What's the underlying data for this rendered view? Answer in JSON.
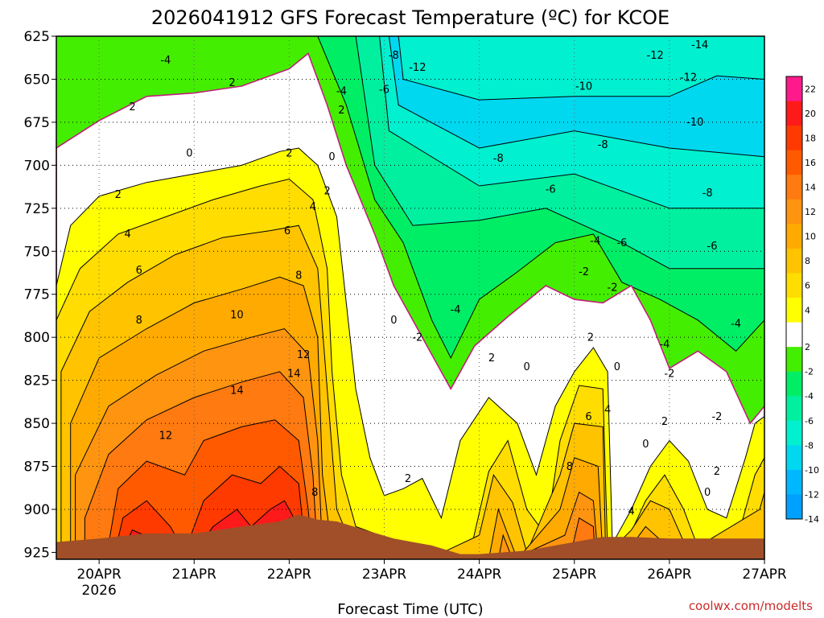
{
  "chart_data": {
    "type": "heatmap",
    "title": "2026041912 GFS Forecast Temperature (ºC) for KCOE",
    "xlabel": "Forecast Time (UTC)",
    "ylabel": "",
    "y_ticks": [
      625,
      650,
      675,
      700,
      725,
      750,
      775,
      800,
      825,
      850,
      875,
      900,
      925
    ],
    "ylim": [
      625,
      929
    ],
    "x_ticks": [
      "20APR",
      "21APR",
      "22APR",
      "23APR",
      "24APR",
      "25APR",
      "26APR",
      "27APR"
    ],
    "x_year_label": "2026",
    "xlim_days": [
      19.55,
      27.0
    ],
    "colorbar_labels": [
      22,
      20,
      18,
      16,
      14,
      12,
      10,
      8,
      6,
      4,
      2,
      -2,
      -4,
      -6,
      -8,
      -10,
      -12,
      -14
    ],
    "colorbar_colors": [
      "#ff1a8c",
      "#ff1a1a",
      "#ff3a00",
      "#ff5a00",
      "#ff7a10",
      "#ff9410",
      "#ffaa00",
      "#ffc300",
      "#ffdd00",
      "#ffff00",
      "#ffffff",
      "#44ee00",
      "#00ee66",
      "#00f0a0",
      "#00f0d0",
      "#00d8f0",
      "#00b8ff",
      "#00a0ff"
    ],
    "column_ridge_temps_C": [
      14,
      18,
      20,
      2,
      10,
      12,
      6,
      4
    ],
    "contour_labels": [
      {
        "text": "-14",
        "day": 26.32,
        "p": 632
      },
      {
        "text": "-12",
        "day": 25.85,
        "p": 638
      },
      {
        "text": "-12",
        "day": 23.35,
        "p": 645
      },
      {
        "text": "-12",
        "day": 26.2,
        "p": 651
      },
      {
        "text": "-8",
        "day": 23.1,
        "p": 638
      },
      {
        "text": "-10",
        "day": 25.1,
        "p": 656
      },
      {
        "text": "-10",
        "day": 26.27,
        "p": 677
      },
      {
        "text": "-6",
        "day": 23.0,
        "p": 658
      },
      {
        "text": "-8",
        "day": 24.2,
        "p": 698
      },
      {
        "text": "-8",
        "day": 25.3,
        "p": 690
      },
      {
        "text": "-8",
        "day": 26.4,
        "p": 718
      },
      {
        "text": "-6",
        "day": 24.75,
        "p": 716
      },
      {
        "text": "-6",
        "day": 25.5,
        "p": 747
      },
      {
        "text": "-6",
        "day": 26.45,
        "p": 749
      },
      {
        "text": "-4",
        "day": 22.55,
        "p": 659
      },
      {
        "text": "-4",
        "day": 20.7,
        "p": 641
      },
      {
        "text": "-4",
        "day": 25.22,
        "p": 746
      },
      {
        "text": "-4",
        "day": 23.75,
        "p": 786
      },
      {
        "text": "-4",
        "day": 26.7,
        "p": 794
      },
      {
        "text": "-4",
        "day": 25.95,
        "p": 806
      },
      {
        "text": "-2",
        "day": 25.1,
        "p": 764
      },
      {
        "text": "-2",
        "day": 25.4,
        "p": 773
      },
      {
        "text": "-2",
        "day": 23.35,
        "p": 802
      },
      {
        "text": "-2",
        "day": 26.0,
        "p": 823
      },
      {
        "text": "-2",
        "day": 26.5,
        "p": 848
      },
      {
        "text": "2",
        "day": 20.35,
        "p": 668
      },
      {
        "text": "2",
        "day": 21.4,
        "p": 654
      },
      {
        "text": "2",
        "day": 22.55,
        "p": 670
      },
      {
        "text": "2",
        "day": 22.0,
        "p": 695
      },
      {
        "text": "2",
        "day": 22.4,
        "p": 717
      },
      {
        "text": "2",
        "day": 20.2,
        "p": 719
      },
      {
        "text": "2",
        "day": 23.25,
        "p": 884
      },
      {
        "text": "2",
        "day": 24.13,
        "p": 814
      },
      {
        "text": "2",
        "day": 25.17,
        "p": 802
      },
      {
        "text": "2",
        "day": 25.95,
        "p": 851
      },
      {
        "text": "2",
        "day": 26.5,
        "p": 880
      },
      {
        "text": "0",
        "day": 20.95,
        "p": 695
      },
      {
        "text": "0",
        "day": 22.45,
        "p": 697
      },
      {
        "text": "0",
        "day": 23.1,
        "p": 792
      },
      {
        "text": "0",
        "day": 24.5,
        "p": 819
      },
      {
        "text": "0",
        "day": 25.45,
        "p": 819
      },
      {
        "text": "0",
        "day": 25.75,
        "p": 864
      },
      {
        "text": "0",
        "day": 26.4,
        "p": 892
      },
      {
        "text": "4",
        "day": 20.3,
        "p": 742
      },
      {
        "text": "4",
        "day": 22.25,
        "p": 726
      },
      {
        "text": "4",
        "day": 25.35,
        "p": 844
      },
      {
        "text": "4",
        "day": 25.6,
        "p": 903
      },
      {
        "text": "6",
        "day": 20.42,
        "p": 763
      },
      {
        "text": "6",
        "day": 21.98,
        "p": 740
      },
      {
        "text": "6",
        "day": 25.15,
        "p": 848
      },
      {
        "text": "8",
        "day": 20.42,
        "p": 792
      },
      {
        "text": "8",
        "day": 22.1,
        "p": 766
      },
      {
        "text": "8",
        "day": 24.95,
        "p": 877
      },
      {
        "text": "8",
        "day": 22.27,
        "p": 892
      },
      {
        "text": "10",
        "day": 21.45,
        "p": 789
      },
      {
        "text": "12",
        "day": 22.15,
        "p": 812
      },
      {
        "text": "12",
        "day": 20.7,
        "p": 859
      },
      {
        "text": "14",
        "day": 21.45,
        "p": 833
      },
      {
        "text": "14",
        "day": 22.05,
        "p": 823
      }
    ]
  },
  "credit": "coolwx.com/modelts"
}
